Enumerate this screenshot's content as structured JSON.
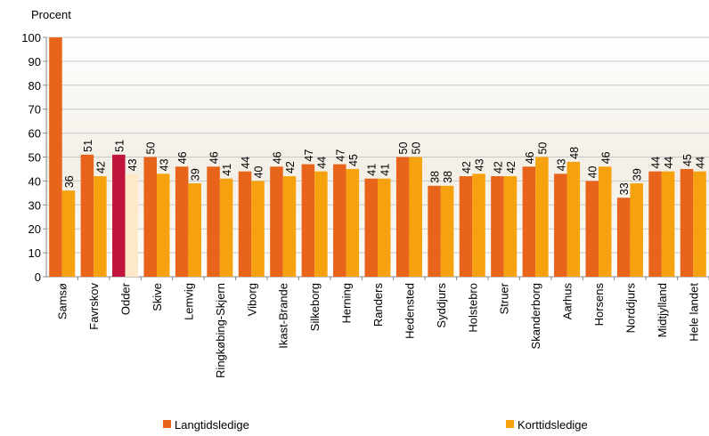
{
  "chart_data": {
    "type": "bar",
    "y_label": "Procent",
    "categories": [
      "Samsø",
      "Favrskov",
      "Odder",
      "Skive",
      "Lemvig",
      "Ringkøbing-Skjern",
      "Viborg",
      "Ikast-Brande",
      "Silkeborg",
      "Herning",
      "Randers",
      "Hedensted",
      "Syddjurs",
      "Holstebro",
      "Struer",
      "Skanderborg",
      "Aarhus",
      "Horsens",
      "Norddjurs",
      "Midtjylland",
      "Hele landet"
    ],
    "series": [
      {
        "name": "Langtidsledige",
        "color": "#e8641b",
        "values": [
          100,
          51,
          51,
          50,
          46,
          46,
          44,
          46,
          47,
          47,
          41,
          50,
          38,
          42,
          42,
          46,
          43,
          40,
          33,
          44,
          45
        ],
        "value_labels": [
          null,
          "51",
          "51",
          "50",
          "46",
          "46",
          "44",
          "46",
          "47",
          "47",
          "41",
          "50",
          "38",
          "42",
          "42",
          "46",
          "43",
          "40",
          "33",
          "44",
          "45"
        ],
        "colors": [
          "#e8641b",
          "#e8641b",
          "#c0143c",
          "#e8641b",
          "#e8641b",
          "#e8641b",
          "#e8641b",
          "#e8641b",
          "#e8641b",
          "#e8641b",
          "#e8641b",
          "#e8641b",
          "#e8641b",
          "#e8641b",
          "#e8641b",
          "#e8641b",
          "#e8641b",
          "#e8641b",
          "#e8641b",
          "#e8641b",
          "#e8641b"
        ]
      },
      {
        "name": "Korttidsledige",
        "color": "#f6a20e",
        "values": [
          36,
          42,
          43,
          43,
          39,
          41,
          40,
          42,
          44,
          45,
          41,
          50,
          38,
          43,
          42,
          50,
          48,
          46,
          39,
          44,
          44
        ],
        "colors": [
          "#f6a20e",
          "#f6a20e",
          "#fde9c8",
          "#f6a20e",
          "#f6a20e",
          "#f6a20e",
          "#f6a20e",
          "#f6a20e",
          "#f6a20e",
          "#f6a20e",
          "#f6a20e",
          "#f6a20e",
          "#f6a20e",
          "#f6a20e",
          "#f6a20e",
          "#f6a20e",
          "#f6a20e",
          "#f6a20e",
          "#f6a20e",
          "#f6a20e",
          "#f6a20e"
        ]
      }
    ],
    "ylim": [
      0,
      100
    ],
    "yticks": [
      0,
      10,
      20,
      30,
      40,
      50,
      60,
      70,
      80,
      90,
      100
    ],
    "grid": true,
    "legend": "bottom"
  }
}
